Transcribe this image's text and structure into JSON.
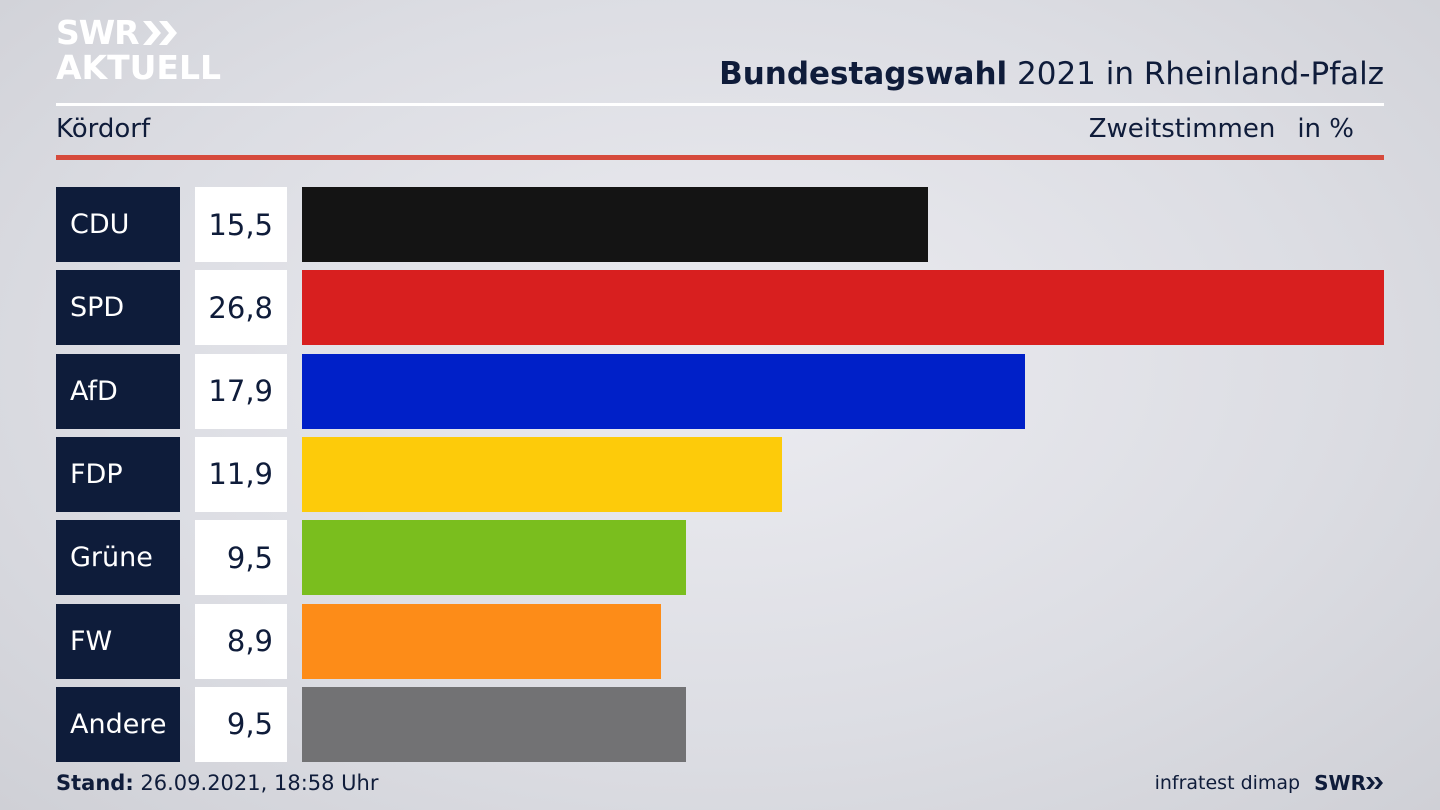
{
  "header": {
    "logo_line1": "SWR",
    "logo_line2": "AKTUELL",
    "title_bold": "Bundestagswahl",
    "title_rest": " 2021 in Rheinland-Pfalz",
    "region": "Kördorf",
    "metric": "Zweitstimmen",
    "unit": "in %"
  },
  "footer": {
    "stand_label": "Stand:",
    "stand_value": " 26.09.2021, 18:58 Uhr",
    "source": "infratest dimap",
    "brand": "SWR"
  },
  "colors": {
    "CDU": "#141414",
    "SPD": "#d81f1f",
    "AfD": "#0020c8",
    "FDP": "#fdcb0a",
    "Grüne": "#7abe1e",
    "FW": "#fd8c18",
    "Andere": "#727274"
  },
  "chart_data": {
    "type": "bar",
    "orientation": "horizontal",
    "categories": [
      "CDU",
      "SPD",
      "AfD",
      "FDP",
      "Grüne",
      "FW",
      "Andere"
    ],
    "values": [
      15.5,
      26.8,
      17.9,
      11.9,
      9.5,
      8.9,
      9.5
    ],
    "value_labels": [
      "15,5",
      "26,8",
      "17,9",
      "11,9",
      "9,5",
      "8,9",
      "9,5"
    ],
    "title": "Bundestagswahl 2021 in Rheinland-Pfalz",
    "ylabel": "Zweitstimmen in %",
    "xlim": [
      0,
      26.8
    ],
    "grid": false
  }
}
